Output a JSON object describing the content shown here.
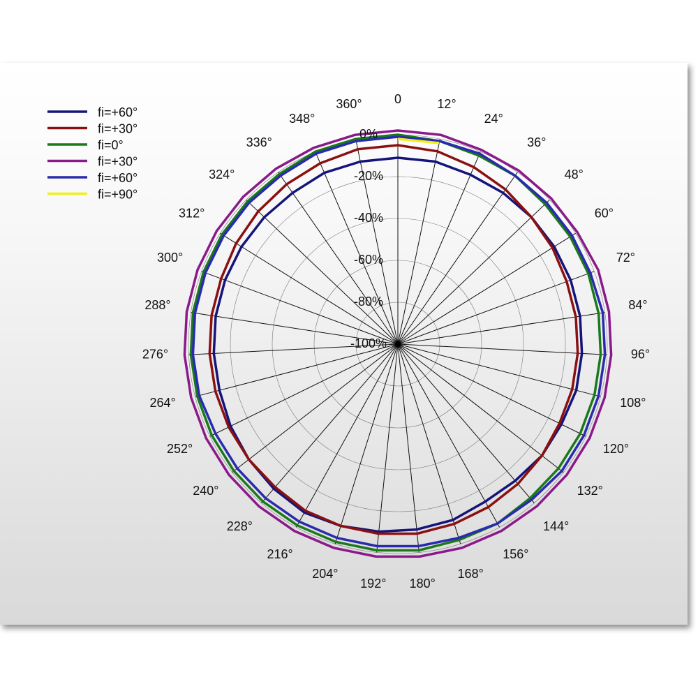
{
  "chart_data": {
    "type": "polar",
    "categories": [
      "0",
      "12°",
      "24°",
      "36°",
      "48°",
      "60°",
      "72°",
      "84°",
      "96°",
      "108°",
      "120°",
      "132°",
      "144°",
      "156°",
      "168°",
      "180°",
      "192°",
      "204°",
      "216°",
      "228°",
      "240°",
      "252°",
      "264°",
      "276°",
      "288°",
      "300°",
      "312°",
      "324°",
      "336°",
      "348°",
      "360°"
    ],
    "ylim": [
      -100,
      0
    ],
    "yticks": [
      {
        "value": -100,
        "label": "-100%"
      },
      {
        "value": -80,
        "label": "-80%"
      },
      {
        "value": -60,
        "label": "-60%"
      },
      {
        "value": -40,
        "label": "-40%"
      },
      {
        "value": -20,
        "label": "-20%"
      },
      {
        "value": 0,
        "label": "0%"
      }
    ],
    "grid": true,
    "legend": "upper left",
    "series": [
      {
        "name": "fi=+60°",
        "color": "#14147a",
        "values": [
          -11,
          -11,
          -12,
          -12,
          -12,
          -12,
          -12,
          -12,
          -12,
          -12,
          -13,
          -13,
          -14,
          -14,
          -12,
          -11,
          -10,
          -9,
          -8,
          -9,
          -10,
          -11,
          -12,
          -12,
          -12,
          -12,
          -12,
          -12,
          -12,
          -11,
          -11
        ]
      },
      {
        "name": "fi=+30°",
        "color": "#8b1010",
        "values": [
          -5,
          -6,
          -8,
          -10,
          -12,
          -13,
          -14,
          -14,
          -14,
          -14,
          -14,
          -13,
          -12,
          -11,
          -10,
          -9,
          -9,
          -9,
          -9,
          -10,
          -10,
          -10,
          -10,
          -10,
          -10,
          -10,
          -9,
          -8,
          -7,
          -6,
          -5
        ]
      },
      {
        "name": "fi=0°",
        "color": "#1a7a1a",
        "values": [
          0,
          -1,
          -2,
          -2,
          -3,
          -3,
          -3,
          -3,
          -3,
          -3,
          -3,
          -3,
          -3,
          -2,
          -2,
          -1,
          -1,
          -1,
          -1,
          -1,
          -1,
          -1,
          -1,
          -1,
          -1,
          -1,
          -1,
          -1,
          -1,
          0,
          0
        ]
      },
      {
        "name": "fi=+30°",
        "color": "#8a1a8a",
        "values": [
          2,
          2,
          1,
          1,
          1,
          1,
          2,
          2,
          2,
          2,
          2,
          2,
          2,
          2,
          2,
          2,
          2,
          2,
          2,
          2,
          2,
          2,
          2,
          2,
          2,
          2,
          2,
          2,
          2,
          2,
          2
        ]
      },
      {
        "name": "fi=+60°",
        "color": "#2a2ab0",
        "values": [
          -1,
          -1,
          -1,
          -2,
          -2,
          -2,
          -2,
          -1,
          -1,
          -1,
          -1,
          -1,
          -2,
          -2,
          -3,
          -3,
          -3,
          -3,
          -3,
          -3,
          -3,
          -3,
          -2,
          -2,
          -2,
          -2,
          -2,
          -2,
          -2,
          -1,
          -1
        ]
      },
      {
        "name": "fi=+90°",
        "color": "#f0f020",
        "values": [
          -2,
          -2,
          null,
          null,
          null,
          null,
          null,
          null,
          null,
          null,
          null,
          null,
          null,
          null,
          null,
          null,
          null,
          null,
          null,
          null,
          null,
          null,
          null,
          null,
          null,
          null,
          null,
          null,
          null,
          null,
          null
        ]
      }
    ]
  }
}
